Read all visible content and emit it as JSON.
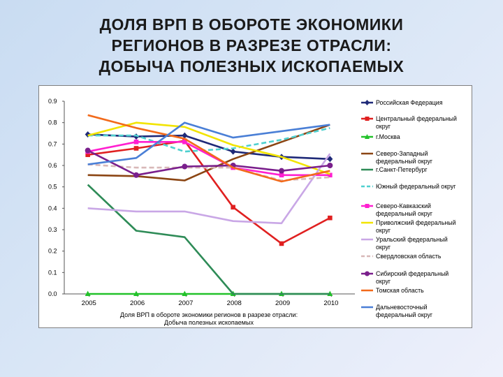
{
  "title_lines": [
    "ДОЛЯ ВРП В ОБОРОТЕ ЭКОНОМИКИ",
    "РЕГИОНОВ В РАЗРЕЗЕ ОТРАСЛИ:",
    "ДОБЫЧА ПОЛЕЗНЫХ ИСКОПАЕМЫХ"
  ],
  "chart_data": {
    "type": "line",
    "categories": [
      "2005",
      "2006",
      "2007",
      "2008",
      "2009",
      "2010"
    ],
    "ylim": [
      0,
      0.9
    ],
    "yticks": [
      "0.0",
      "0.1",
      "0.2",
      "0.3",
      "0.4",
      "0.5",
      "0.6",
      "0.7",
      "0.8",
      "0.9"
    ],
    "xlabel_lines": [
      "Доля ВРП в обороте экономики регионов в разрезе отрасли:",
      "Добыча полезных ископаемых"
    ],
    "grid": false,
    "legend_position": "right",
    "series": [
      {
        "name": [
          "Российская Федерация"
        ],
        "color": "#1f2a78",
        "dash": "",
        "marker": "diamond",
        "values": [
          0.745,
          0.735,
          0.74,
          0.665,
          0.64,
          0.63
        ]
      },
      {
        "name": [
          "Центральный федеральный",
          "округ"
        ],
        "color": "#e02020",
        "dash": "",
        "marker": "square",
        "values": [
          0.65,
          0.68,
          0.715,
          0.405,
          0.235,
          0.355
        ]
      },
      {
        "name": [
          "г.Москва"
        ],
        "color": "#22c22a",
        "dash": "",
        "marker": "triangle",
        "values": [
          0.0,
          0.0,
          0.0,
          0.0,
          0.0,
          0.0
        ]
      },
      {
        "name": [
          "Северо-Западный",
          "федеральный округ"
        ],
        "color": "#8b4513",
        "dash": "",
        "marker": "none",
        "values": [
          0.555,
          0.55,
          0.53,
          0.63,
          0.71,
          0.79
        ]
      },
      {
        "name": [
          "г.Санкт-Петербург"
        ],
        "color": "#2e8b57",
        "dash": "",
        "marker": "none",
        "values": [
          0.51,
          0.295,
          0.265,
          0.0,
          0.0,
          0.0
        ]
      },
      {
        "name": [
          "Южный федеральный округ"
        ],
        "color": "#4fd0cf",
        "dash": "7,4",
        "marker": "none",
        "values": [
          0.74,
          0.74,
          0.665,
          0.68,
          0.72,
          0.775
        ]
      },
      {
        "name": [
          "Северо-Кавказский",
          "федеральный округ"
        ],
        "color": "#ff1fd0",
        "dash": "",
        "marker": "square",
        "values": [
          0.665,
          0.71,
          0.71,
          0.59,
          0.555,
          0.555
        ]
      },
      {
        "name": [
          "Приволжский федеральный",
          "округ"
        ],
        "color": "#f2e400",
        "dash": "",
        "marker": "none",
        "values": [
          0.74,
          0.8,
          0.78,
          0.695,
          0.64,
          0.56
        ]
      },
      {
        "name": [
          "Уральский федеральный",
          "округ"
        ],
        "color": "#c9a7e6",
        "dash": "",
        "marker": "none",
        "values": [
          0.4,
          0.385,
          0.385,
          0.34,
          0.33,
          0.655
        ]
      },
      {
        "name": [
          "Свердловская область"
        ],
        "color": "#d8b8b8",
        "dash": "7,4",
        "marker": "none",
        "values": [
          0.605,
          0.59,
          0.59,
          0.59,
          0.53,
          0.545
        ]
      },
      {
        "name": [
          "Сибирский федеральный",
          "округ"
        ],
        "color": "#7a1f8c",
        "dash": "",
        "marker": "circle",
        "values": [
          0.67,
          0.555,
          0.595,
          0.6,
          0.575,
          0.6
        ]
      },
      {
        "name": [
          "Томская область"
        ],
        "color": "#f26a1b",
        "dash": "",
        "marker": "none",
        "values": [
          0.835,
          0.775,
          0.725,
          0.59,
          0.525,
          0.575
        ]
      },
      {
        "name": [
          "Дальневосточный",
          "федеральный округ"
        ],
        "color": "#4a7fd6",
        "dash": "",
        "marker": "none",
        "values": [
          0.605,
          0.635,
          0.8,
          0.73,
          0.76,
          0.79
        ]
      }
    ]
  }
}
